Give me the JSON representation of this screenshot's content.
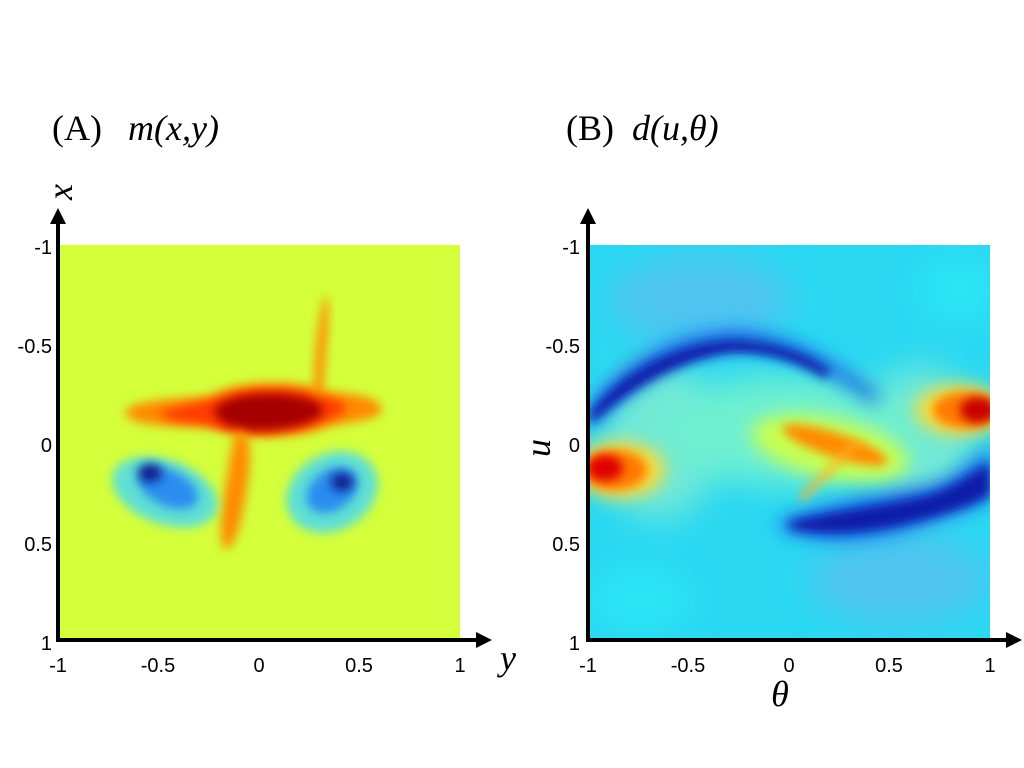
{
  "chart_data": [
    {
      "type": "heatmap",
      "panel_label": "(A)",
      "title": "m(x,y)",
      "xlabel": "y",
      "ylabel": "x",
      "xlim": [
        -1,
        1
      ],
      "ylim": [
        -1,
        1
      ],
      "xticks": [
        "-1",
        "-0.5",
        "0",
        "0.5",
        "1"
      ],
      "yticks": [
        "-1",
        "-0.5",
        "0",
        "0.5",
        "1"
      ],
      "y_axis_direction": "down",
      "colormap": "jet",
      "background_color": "#d4ff3a",
      "features": [
        "horizontal red/dark-red band near x=-0.15 spanning y≈-0.7 to 0.6",
        "thin vertical orange stripe from x≈-0.75 to x≈0.5 near y≈-0.1 to 0.3",
        "cyan/blue blob centred near (y=-0.5, x=0.15)",
        "cyan/blue blob centred near (y=0.4, x=0.2)"
      ]
    },
    {
      "type": "heatmap",
      "panel_label": "(B)",
      "title": "d(u,θ)",
      "xlabel": "θ",
      "ylabel": "u",
      "xlim": [
        -1,
        1
      ],
      "ylim": [
        -1,
        1
      ],
      "xticks": [
        "-1",
        "-0.5",
        "0",
        "0.5",
        "1"
      ],
      "yticks": [
        "-1",
        "-0.5",
        "0",
        "0.5",
        "1"
      ],
      "y_axis_direction": "down",
      "colormap": "jet",
      "background_color": "#2ad8f2",
      "features": [
        "dark blue sinusoidal band from (θ=-1, u=-0.2) peaking near (θ=-0.3, u=-0.55)",
        "dark blue band from (θ=0, u=0.4) to (θ=1, u=0.2)",
        "red blob near (θ=-0.9, u=0.15)",
        "red blob near (θ=0.9, u=-0.17)",
        "orange streak near (θ=0.3, u=0.05)"
      ]
    }
  ]
}
